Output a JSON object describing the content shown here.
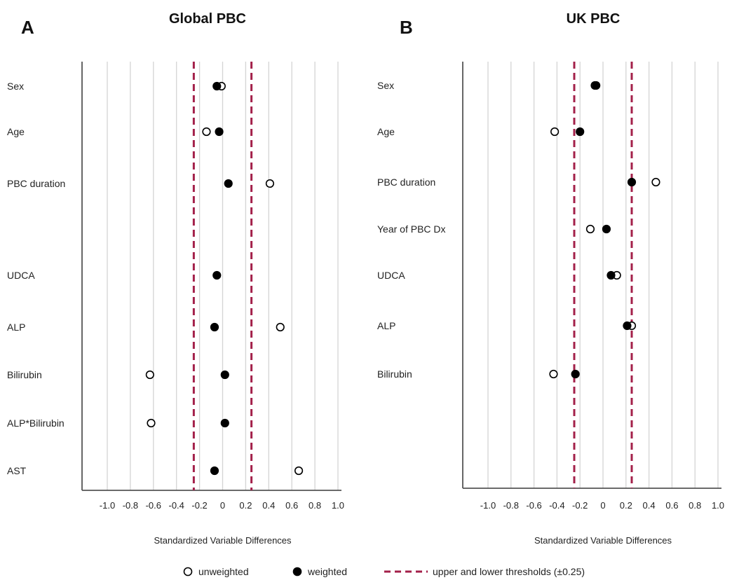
{
  "colors": {
    "threshold": "#a3204a",
    "grid": "#d4d4d4",
    "axis": "#555555",
    "marker_fill_weighted": "#000000",
    "marker_fill_unweighted": "#ffffff"
  },
  "legend": {
    "unweighted": "unweighted",
    "weighted": "weighted",
    "threshold": "upper and lower thresholds (±0.25)",
    "placement": "bottom-center"
  },
  "chart_data": [
    {
      "type": "scatter",
      "panel_letter": "A",
      "title": "Global PBC",
      "xlabel": "Standardized Variable Differences",
      "xlim": [
        -1.0,
        1.0
      ],
      "xticks": [
        "-1.0",
        "-0.8",
        "-0.6",
        "-0.4",
        "-0.2",
        "0",
        "0.2",
        "0.4",
        "0.6",
        "0.8",
        "1.0"
      ],
      "grid": true,
      "thresholds": [
        -0.25,
        0.25
      ],
      "categories": [
        "Sex",
        "Age",
        "PBC duration",
        "UDCA",
        "ALP",
        "Bilirubin",
        "ALP*Bilirubin",
        "AST"
      ],
      "series": [
        {
          "name": "unweighted",
          "values": [
            -0.01,
            -0.14,
            0.41,
            null,
            0.5,
            -0.63,
            -0.62,
            0.66
          ]
        },
        {
          "name": "weighted",
          "values": [
            -0.05,
            -0.03,
            0.05,
            -0.05,
            -0.07,
            0.02,
            0.02,
            -0.07
          ]
        }
      ]
    },
    {
      "type": "scatter",
      "panel_letter": "B",
      "title": "UK PBC",
      "xlabel": "Standardized Variable Differences",
      "xlim": [
        -1.0,
        1.0
      ],
      "xticks": [
        "-1.0",
        "-0.8",
        "-0.6",
        "-0.4",
        "-0.2",
        "0",
        "0.2",
        "0.4",
        "0.6",
        "0.8",
        "1.0"
      ],
      "grid": true,
      "thresholds": [
        -0.25,
        0.25
      ],
      "categories": [
        "Sex",
        "Age",
        "PBC duration",
        "Year of PBC Dx",
        "UDCA",
        "ALP",
        "Bilirubin"
      ],
      "series": [
        {
          "name": "unweighted",
          "values": [
            -0.07,
            -0.42,
            0.46,
            -0.11,
            0.12,
            0.25,
            -0.43
          ]
        },
        {
          "name": "weighted",
          "values": [
            -0.06,
            -0.2,
            0.25,
            0.03,
            0.07,
            0.21,
            -0.24
          ]
        }
      ]
    }
  ]
}
